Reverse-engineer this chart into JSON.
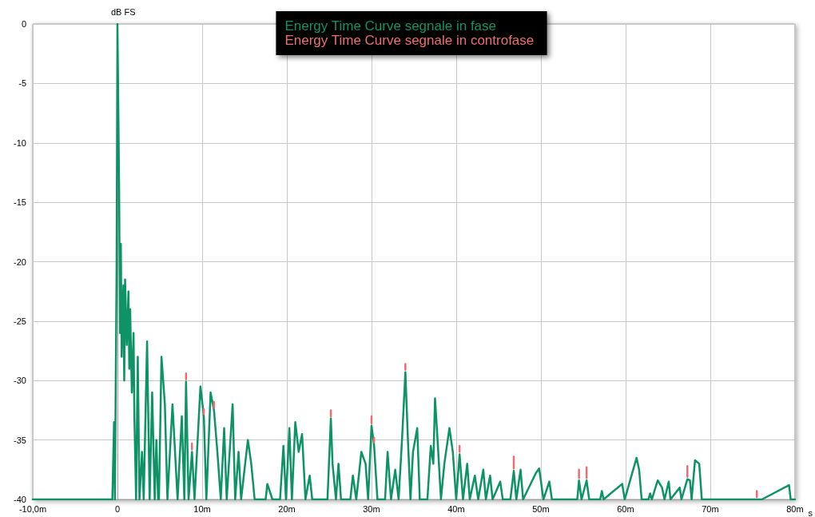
{
  "chart_data": {
    "type": "line",
    "xlabel": "s",
    "ylabel": "dB FS",
    "x": [
      -10,
      -0.6,
      -0.4,
      -0.3,
      -0.1,
      0,
      0.2,
      0.3,
      0.4,
      0.5,
      0.7,
      0.8,
      0.9,
      1.1,
      1.3,
      1.4,
      1.5,
      1.7,
      1.9,
      2,
      2.2,
      2.4,
      2.6,
      2.9,
      3.1,
      3.5,
      3.8,
      4.1,
      4.4,
      4.6,
      4.8,
      4.9,
      5.2,
      5.6,
      5.9,
      6.5,
      6.8,
      7.1,
      7.6,
      7.9,
      8.1,
      8.4,
      8.8,
      9.1,
      9.8,
      10.2,
      10.5,
      11,
      11.4,
      11.8,
      12.2,
      12.6,
      12.9,
      13.6,
      13.9,
      14.3,
      14.6,
      15.4,
      15.8,
      16.2,
      17.5,
      17.7,
      18.3,
      19.2,
      19.6,
      19.9,
      20.3,
      20.6,
      21,
      21.4,
      21.8,
      22.2,
      22.7,
      23,
      24.8,
      25.2,
      25.4,
      25.8,
      26.1,
      26.4,
      27.5,
      27.8,
      28.2,
      28.8,
      29.3,
      29.6,
      30,
      30.3,
      30.7,
      31.6,
      31.9,
      32.3,
      32.8,
      33.2,
      33.6,
      34,
      34.3,
      34.6,
      34.9,
      35.4,
      35.7,
      36.6,
      37,
      37.3,
      37.5,
      37.8,
      38.2,
      38.6,
      39.2,
      39.6,
      40,
      40.4,
      40.8,
      41.3,
      41.6,
      42.2,
      42.6,
      43.2,
      43.5,
      44,
      44.3,
      45.2,
      45.5,
      46.4,
      46.8,
      47.1,
      47.6,
      47.9,
      49.4,
      49.8,
      50.3,
      51,
      51.3,
      54.3,
      54.5,
      54.8,
      55.4,
      55.7,
      57,
      57.2,
      57.4,
      59.6,
      59.9,
      61.3,
      61.6,
      61.9,
      62.7,
      62.9,
      63.1,
      63.8,
      64.3,
      64.6,
      65.1,
      65.3,
      66.4,
      66.6,
      67.3,
      67.6,
      67.8,
      68.2,
      68.7,
      69,
      75.5,
      75.8,
      76.1,
      79.3,
      79.5,
      80
    ],
    "xlim": [
      -10,
      80
    ],
    "xticks": [
      {
        "value": -10,
        "label": "-10,0m"
      },
      {
        "value": 0,
        "label": "0"
      },
      {
        "value": 10,
        "label": "10m"
      },
      {
        "value": 20,
        "label": "20m"
      },
      {
        "value": 30,
        "label": "30m"
      },
      {
        "value": 40,
        "label": "40m"
      },
      {
        "value": 50,
        "label": "50m"
      },
      {
        "value": 60,
        "label": "60m"
      },
      {
        "value": 70,
        "label": "70m"
      },
      {
        "value": 80,
        "label": "80m"
      }
    ],
    "ylim": [
      -40,
      0
    ],
    "yticks": [
      -40,
      -35,
      -30,
      -25,
      -20,
      -15,
      -10,
      -5,
      0
    ],
    "grid": true,
    "legend": "top",
    "marker": "none",
    "line_style": "solid",
    "series": [
      {
        "name": "Energy Time Curve segnale in fase",
        "color": "#0e9366",
        "values": [
          -40,
          -40,
          -33.5,
          -40,
          -20.5,
          0,
          -14,
          -26,
          -18.5,
          -28,
          -22,
          -30,
          -21.5,
          -27,
          -22.5,
          -29,
          -24,
          -31,
          -26,
          -33,
          -40,
          -28,
          -40,
          -36,
          -40,
          -26.7,
          -40,
          -31,
          -40,
          -35,
          -40,
          -40,
          -28,
          -32,
          -40,
          -32,
          -36,
          -40,
          -33,
          -40,
          -30.1,
          -40,
          -36,
          -40,
          -30.5,
          -33,
          -40,
          -31,
          -32.5,
          -36,
          -40,
          -34,
          -40,
          -32,
          -40,
          -36,
          -40,
          -35,
          -37,
          -40,
          -40,
          -38.7,
          -40,
          -40,
          -35.5,
          -40,
          -34,
          -40,
          -33.5,
          -36,
          -34.5,
          -40,
          -38,
          -40,
          -40,
          -33.2,
          -37,
          -40,
          -37,
          -40,
          -40,
          -38,
          -40,
          -36,
          -37,
          -40,
          -33.8,
          -35.4,
          -40,
          -40,
          -36,
          -40,
          -37.5,
          -40,
          -35,
          -29.3,
          -35,
          -40,
          -36,
          -34,
          -40,
          -40,
          -35.5,
          -37,
          -31.5,
          -35,
          -40,
          -37,
          -34,
          -36,
          -40,
          -36.2,
          -40,
          -37,
          -40,
          -38,
          -40,
          -37.5,
          -40,
          -38,
          -40,
          -38.5,
          -40,
          -40,
          -37.6,
          -40,
          -37.5,
          -40,
          -37.8,
          -37.4,
          -40,
          -38.5,
          -40,
          -40,
          -38.4,
          -40,
          -38.4,
          -40,
          -40,
          -39.3,
          -40,
          -38.7,
          -40,
          -36.5,
          -37.5,
          -40,
          -40,
          -39.5,
          -40,
          -38.4,
          -39,
          -40,
          -38.5,
          -40,
          -39,
          -40,
          -38.3,
          -38.4,
          -40,
          -36.7,
          -37,
          -40,
          -40,
          -40,
          -40,
          -38.8,
          -40,
          -40
        ]
      },
      {
        "name": "Energy Time Curve segnale in controfase",
        "color": "#ec6e6e",
        "x": [
          8.1,
          8.1,
          null,
          8.8,
          8.8,
          null,
          10.2,
          10.2,
          null,
          11.4,
          11.4,
          null,
          25.2,
          25.2,
          null,
          30,
          30,
          null,
          30.3,
          30.3,
          null,
          34,
          34,
          null,
          40.4,
          40.4,
          null,
          46.8,
          46.8,
          null,
          54.5,
          54.5,
          null,
          55.4,
          55.4,
          null,
          67.3,
          67.3,
          null,
          75.5,
          75.5
        ],
        "values": [
          -29.4,
          -29.9,
          null,
          -35.3,
          -35.8,
          null,
          -32.4,
          -32.8,
          null,
          -31.8,
          -32.3,
          null,
          -32.5,
          -33,
          null,
          -33,
          -33.6,
          null,
          -34.8,
          -35.2,
          null,
          -28.6,
          -29.1,
          null,
          -35.5,
          -36,
          null,
          -36.4,
          -37.4,
          null,
          -37.5,
          -38.2,
          null,
          -37.3,
          -38.2,
          null,
          -37.2,
          -38.1,
          null,
          -39.3,
          -39.8
        ]
      }
    ]
  }
}
